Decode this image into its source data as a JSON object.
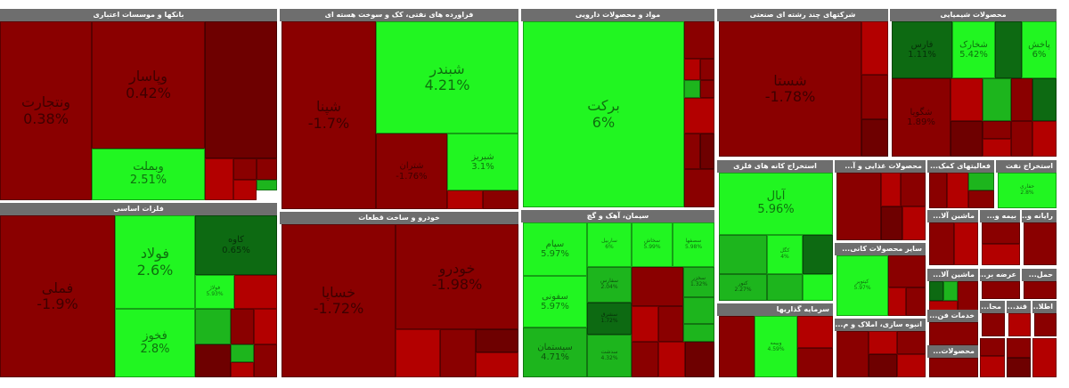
{
  "sectors": {
    "banks": {
      "title": "بانکها و موسسات اعتباری",
      "tiles": {
        "ventejarat": {
          "name": "ونتجارت",
          "pct": "0.38%"
        },
        "vepasar": {
          "name": "وپاسار",
          "pct": "0.42%"
        },
        "vebemelat": {
          "name": "وبملت",
          "pct": "2.51%"
        }
      }
    },
    "refinery": {
      "title": "فراورده هاى نفتى، کک و سوخت هسته اى",
      "tiles": {
        "shebandar": {
          "name": "شبندر",
          "pct": "4.21%"
        },
        "shepna": {
          "name": "شپنا",
          "pct": "-1.7%"
        },
        "shetran": {
          "name": "شتران",
          "pct": "-1.76%"
        },
        "shebriz": {
          "name": "شبریز",
          "pct": "3.1%"
        }
      }
    },
    "pharma": {
      "title": "مواد و محصولات دارويى",
      "tiles": {
        "barkat": {
          "name": "برکت",
          "pct": "6%"
        }
      }
    },
    "holding": {
      "title": "شرکتهاى چند رشته اى صنعتى",
      "tiles": {
        "shasta": {
          "name": "شستا",
          "pct": "-1.78%"
        }
      }
    },
    "chemicals": {
      "title": "محصولات شيميايى",
      "tiles": {
        "fars": {
          "name": "فارس",
          "pct": "1.11%"
        },
        "shekhark": {
          "name": "شخارک",
          "pct": "5.42%"
        },
        "pakhsh": {
          "name": "پاخش",
          "pct": "6%"
        },
        "shegoyah": {
          "name": "شگویا",
          "pct": "1.89%"
        }
      }
    },
    "metals": {
      "title": "فلزات اساسى",
      "tiles": {
        "foulad": {
          "name": "فولاد",
          "pct": "2.6%"
        },
        "fameli": {
          "name": "فملی",
          "pct": "-1.9%"
        },
        "fokhouz": {
          "name": "فخوز",
          "pct": "2.8%"
        },
        "kaveh": {
          "name": "کاوه",
          "pct": "0.65%"
        },
        "foulad2": {
          "name": "فولاژ",
          "pct": "5.93%"
        }
      }
    },
    "auto": {
      "title": "خودرو و ساخت قطعات",
      "tiles": {
        "khsapa": {
          "name": "خساپا",
          "pct": "-1.72%"
        },
        "khodro": {
          "name": "خودرو",
          "pct": "-1.98%"
        }
      }
    },
    "cement": {
      "title": "سيمان، آهک و گچ",
      "tiles": {
        "sipam": {
          "name": "سپام",
          "pct": "5.97%"
        },
        "sefouni": {
          "name": "سفونی",
          "pct": "5.97%"
        },
        "sisteman": {
          "name": "سیستمان",
          "pct": "4.71%"
        },
        "sarabi": {
          "name": "ساربیل",
          "pct": "6%"
        },
        "sekhash": {
          "name": "سخاش",
          "pct": "5.99%"
        },
        "sesfaha": {
          "name": "سصفها",
          "pct": "5.98%"
        },
        "sefar": {
          "name": "سفارس",
          "pct": "2.04%"
        },
        "sharoud": {
          "name": "سشرق",
          "pct": "1.72%"
        },
        "sedasht": {
          "name": "سدشت",
          "pct": "4.32%"
        },
        "sekhazar": {
          "name": "سخزر",
          "pct": "1.32%"
        }
      }
    },
    "mining": {
      "title": "استخراج کانه هاى فلزى",
      "tiles": {
        "aval": {
          "name": "آبال",
          "pct": "5.96%"
        },
        "keghel": {
          "name": "کگل",
          "pct": "4%"
        },
        "koudar": {
          "name": "کنور",
          "pct": "2.27%"
        }
      }
    },
    "investment": {
      "title": "سرمايه گذاريها",
      "tiles": {
        "vesandi": {
          "name": "وبیمه",
          "pct": "4.59%"
        }
      }
    },
    "food": {
      "title": "محصولات غذايى و آ...",
      "tiles": {}
    },
    "nonmetal": {
      "title": "ساير محصولات کانى...",
      "tiles": {
        "kiton": {
          "name": "کیتوپر",
          "pct": "5.97%"
        }
      }
    },
    "construction": {
      "title": "انبوه سازى، املاک و م...",
      "tiles": {}
    },
    "aux": {
      "title": "فعاليتهاى کمک...",
      "tiles": {}
    },
    "oil": {
      "title": "استخراج نفت",
      "tiles": {
        "hafari": {
          "name": "حفاری",
          "pct": "2.8%"
        }
      }
    },
    "machinery": {
      "title": "ماشين آلا...",
      "tiles": {}
    },
    "insurance": {
      "title": "بيمه و...",
      "tiles": {}
    },
    "computer": {
      "title": "رايانه و...",
      "tiles": {}
    },
    "electrical": {
      "title": "ماشين آلا...",
      "tiles": {}
    },
    "supply": {
      "title": "عرضه بر...",
      "tiles": {}
    },
    "transport": {
      "title": "حمل...",
      "tiles": {}
    },
    "services": {
      "title": "خدمات فن...",
      "tiles": {}
    },
    "mah": {
      "title": "محا...",
      "tiles": {}
    },
    "rubber": {
      "title": "محصولات...",
      "tiles": {}
    },
    "sugar": {
      "title": "قند...",
      "tiles": {}
    },
    "textile": {
      "title": "اطلا...",
      "tiles": {}
    }
  },
  "colors": {
    "strong_green": "#21f621",
    "mid_green": "#1db51d",
    "dark_green": "#0d6a12",
    "dark_red": "#8a0000",
    "red": "#b30000",
    "deep_red": "#6e0000",
    "header": "#6e6e6e"
  }
}
